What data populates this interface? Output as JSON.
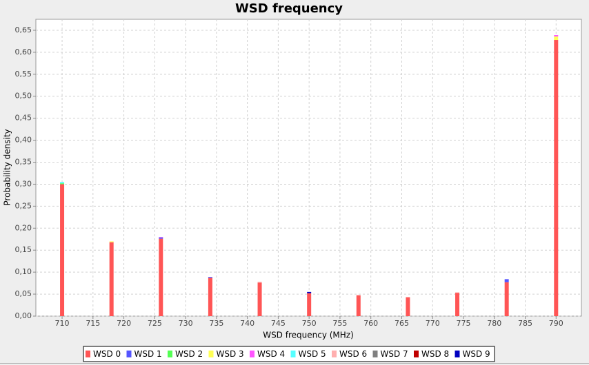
{
  "chart_data": {
    "type": "stacked_bar",
    "title": "WSD frequency",
    "x_label": "WSD frequency (MHz)",
    "y_label": "Probability density",
    "x": [
      710,
      718,
      726,
      734,
      742,
      750,
      758,
      766,
      774,
      782,
      790
    ],
    "series": [
      {
        "name": "WSD 0",
        "color": "#ff5555",
        "values": [
          0.3,
          0.168,
          0.176,
          0.087,
          0.076,
          0.052,
          0.047,
          0.043,
          0.053,
          0.077,
          0.628
        ]
      },
      {
        "name": "WSD 1",
        "color": "#5555ff",
        "values": [
          0,
          0,
          0.003,
          0.002,
          0,
          0,
          0,
          0,
          0,
          0.007,
          0
        ]
      },
      {
        "name": "WSD 2",
        "color": "#55ff55",
        "values": [
          0.002,
          0,
          0,
          0,
          0,
          0,
          0,
          0,
          0,
          0,
          0
        ]
      },
      {
        "name": "WSD 3",
        "color": "#ffff55",
        "values": [
          0,
          0.002,
          0,
          0,
          0,
          0,
          0,
          0,
          0,
          0,
          0.008
        ]
      },
      {
        "name": "WSD 4",
        "color": "#ff55ff",
        "values": [
          0,
          0,
          0.001,
          0,
          0,
          0,
          0,
          0,
          0,
          0,
          0.003
        ]
      },
      {
        "name": "WSD 5",
        "color": "#55ffff",
        "values": [
          0.003,
          0,
          0,
          0,
          0,
          0,
          0,
          0,
          0,
          0,
          0
        ]
      },
      {
        "name": "WSD 6",
        "color": "#ffafaf",
        "values": [
          0,
          0,
          0,
          0,
          0.002,
          0,
          0.001,
          0,
          0.001,
          0,
          0
        ]
      },
      {
        "name": "WSD 7",
        "color": "#808080",
        "values": [
          0,
          0,
          0,
          0,
          0,
          0,
          0,
          0,
          0,
          0,
          0
        ]
      },
      {
        "name": "WSD 8",
        "color": "#c00000",
        "values": [
          0,
          0,
          0,
          0,
          0,
          0,
          0,
          0,
          0,
          0,
          0
        ]
      },
      {
        "name": "WSD 9",
        "color": "#0000c0",
        "values": [
          0,
          0,
          0,
          0,
          0,
          0.003,
          0,
          0,
          0,
          0,
          0
        ]
      }
    ],
    "xlim": [
      705.75,
      794.1
    ],
    "xticks": [
      710,
      715,
      720,
      725,
      730,
      735,
      740,
      745,
      750,
      755,
      760,
      765,
      770,
      775,
      780,
      785,
      790
    ],
    "ylim": [
      0,
      0.675
    ],
    "yticks": [
      {
        "value": 0,
        "label": "0,00"
      },
      {
        "value": 0.05,
        "label": "0,05"
      },
      {
        "value": 0.1,
        "label": "0,10"
      },
      {
        "value": 0.15,
        "label": "0,15"
      },
      {
        "value": 0.2,
        "label": "0,20"
      },
      {
        "value": 0.25,
        "label": "0,25"
      },
      {
        "value": 0.3,
        "label": "0,30"
      },
      {
        "value": 0.35,
        "label": "0,35"
      },
      {
        "value": 0.4,
        "label": "0,40"
      },
      {
        "value": 0.45,
        "label": "0,45"
      },
      {
        "value": 0.5,
        "label": "0,50"
      },
      {
        "value": 0.55,
        "label": "0,55"
      },
      {
        "value": 0.6,
        "label": "0,60"
      },
      {
        "value": 0.65,
        "label": "0,65"
      }
    ],
    "grid": true,
    "legend": "bottom"
  }
}
